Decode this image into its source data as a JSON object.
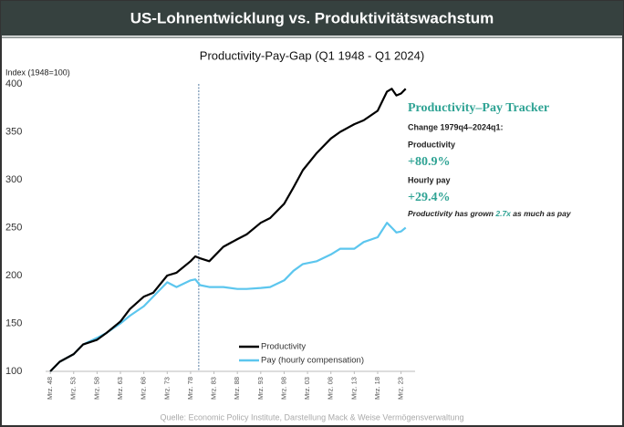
{
  "chart_data": {
    "type": "line",
    "header": "US-Lohnentwicklung vs. Produktivitätswachstum",
    "title": "Productivity-Pay-Gap (Q1 1948 - Q1 2024)",
    "y_label": "Index (1948=100)",
    "source": "Quelle: Economic Policy Institute, Darstellung Mack & Weise Vermögensverwaltung",
    "x": [
      1948,
      1950,
      1953,
      1955,
      1958,
      1960,
      1963,
      1965,
      1968,
      1970,
      1973,
      1975,
      1978,
      1979,
      1980,
      1982,
      1985,
      1988,
      1990,
      1993,
      1995,
      1998,
      2000,
      2002,
      2005,
      2008,
      2010,
      2013,
      2015,
      2018,
      2020,
      2021,
      2022,
      2023,
      2024
    ],
    "series": [
      {
        "name": "Productivity",
        "color": "#000000",
        "values": [
          100,
          110,
          118,
          128,
          133,
          140,
          152,
          165,
          178,
          182,
          200,
          203,
          215,
          220,
          218,
          215,
          230,
          238,
          243,
          255,
          260,
          275,
          292,
          310,
          328,
          343,
          350,
          358,
          362,
          372,
          392,
          395,
          388,
          390,
          395
        ]
      },
      {
        "name": "Pay (hourly compensation)",
        "color": "#5cc6ee",
        "values": [
          100,
          110,
          118,
          128,
          135,
          140,
          150,
          158,
          168,
          178,
          193,
          188,
          195,
          196,
          190,
          188,
          188,
          186,
          186,
          187,
          188,
          195,
          205,
          212,
          215,
          222,
          228,
          228,
          235,
          240,
          255,
          250,
          245,
          246,
          250
        ]
      }
    ],
    "xlim": [
      1947,
      2026
    ],
    "ylim": [
      100,
      400
    ],
    "yticks": [
      100,
      150,
      200,
      250,
      300,
      350,
      400
    ],
    "xticks": [
      {
        "value": 1948,
        "label": "Mrz. 48"
      },
      {
        "value": 1953,
        "label": "Mrz. 53"
      },
      {
        "value": 1958,
        "label": "Mrz. 58"
      },
      {
        "value": 1963,
        "label": "Mrz. 63"
      },
      {
        "value": 1968,
        "label": "Mrz. 68"
      },
      {
        "value": 1973,
        "label": "Mrz. 73"
      },
      {
        "value": 1978,
        "label": "Mrz. 78"
      },
      {
        "value": 1983,
        "label": "Mrz. 83"
      },
      {
        "value": 1988,
        "label": "Mrz. 88"
      },
      {
        "value": 1993,
        "label": "Mrz. 93"
      },
      {
        "value": 1998,
        "label": "Mrz. 98"
      },
      {
        "value": 2003,
        "label": "Mrz. 03"
      },
      {
        "value": 2008,
        "label": "Mrz. 08"
      },
      {
        "value": 2013,
        "label": "Mrz. 13"
      },
      {
        "value": 2018,
        "label": "Mrz. 18"
      },
      {
        "value": 2023,
        "label": "Mrz. 23"
      }
    ],
    "vline_x": 1979.75,
    "tracker": {
      "title": "Productivity–Pay Tracker",
      "change": "Change 1979q4–2024q1:",
      "label1": "Productivity",
      "value1": "+80.9%",
      "label2": "Hourly pay",
      "value2": "+29.4%",
      "note": [
        "Productivity has grown ",
        "2.7x",
        " as much as pay"
      ]
    },
    "accent": "#2fa394",
    "legend": "lower center"
  }
}
